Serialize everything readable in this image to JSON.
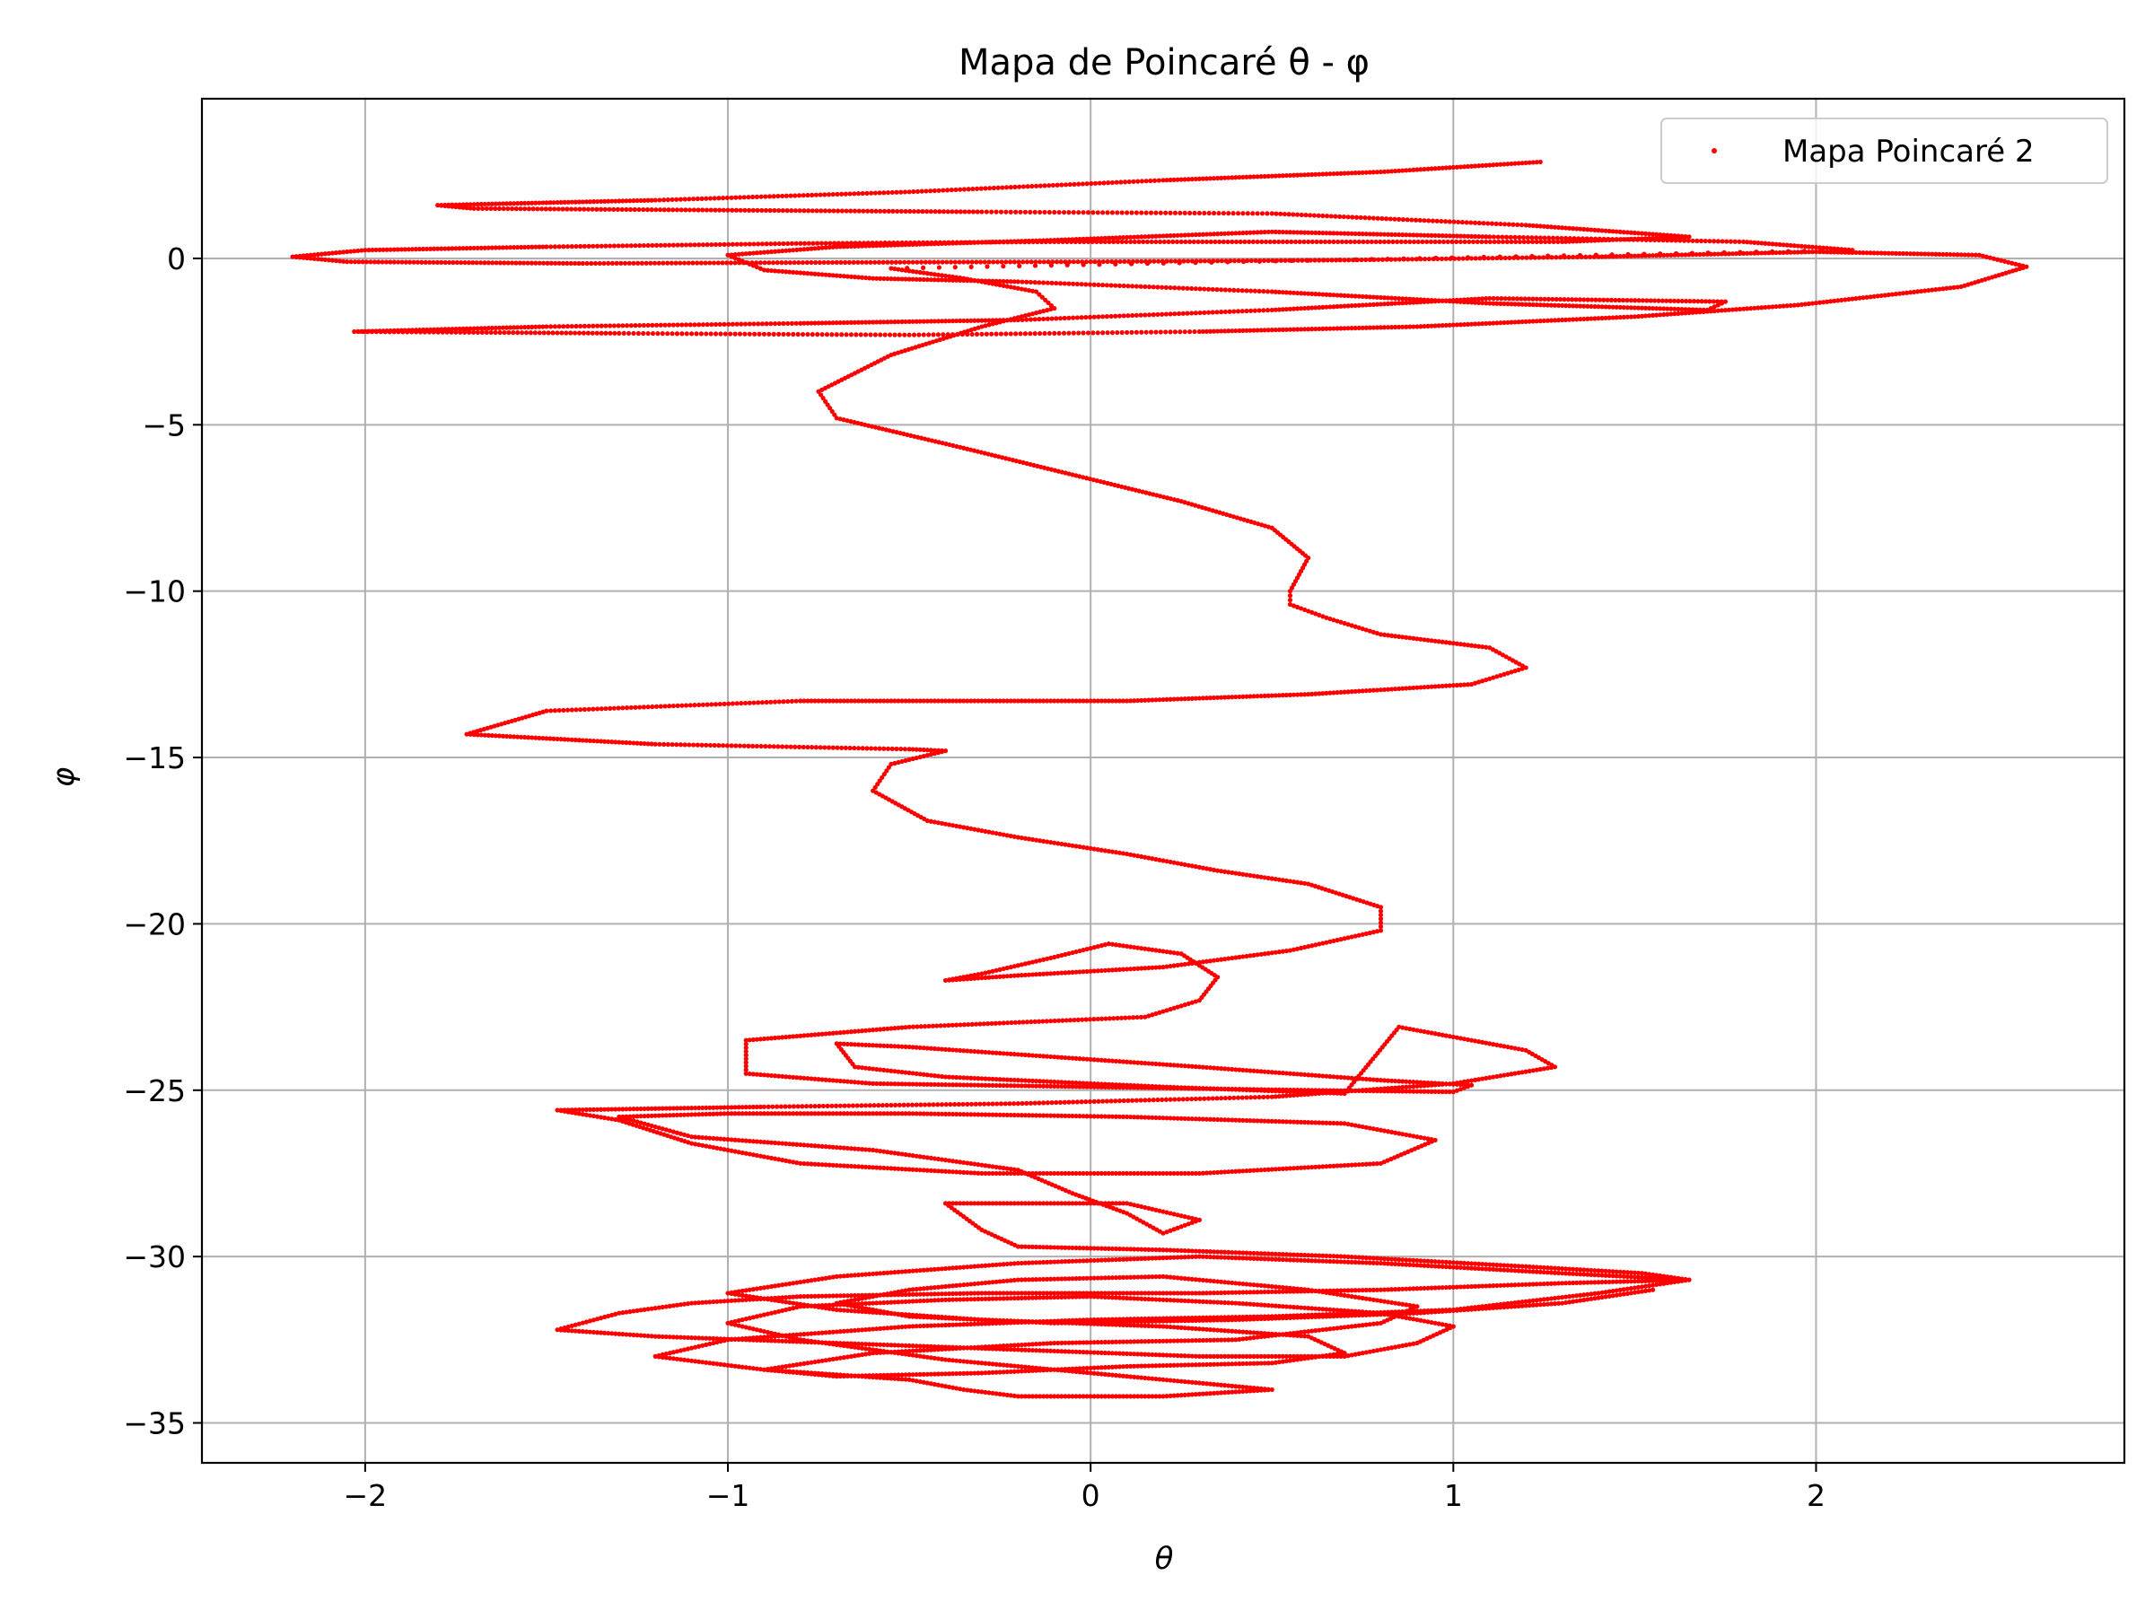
{
  "chart_data": {
    "type": "scatter",
    "title": "Mapa de Poincaré θ - φ",
    "xlabel": "θ",
    "ylabel": "φ",
    "xlim": [
      -2.45,
      2.85
    ],
    "ylim": [
      -36.2,
      4.8
    ],
    "xticks": [
      -2,
      -1,
      0,
      1,
      2
    ],
    "yticks": [
      0,
      -5,
      -10,
      -15,
      -20,
      -25,
      -30,
      -35
    ],
    "grid": true,
    "legend": "top-right",
    "series": [
      {
        "name": "Mapa Poincaré 2",
        "color": "#ff0000",
        "marker": "dot",
        "points": [
          [
            1.24,
            2.9
          ],
          [
            0.8,
            2.6
          ],
          [
            0.2,
            2.35
          ],
          [
            -0.5,
            2.0
          ],
          [
            -1.2,
            1.75
          ],
          [
            -1.8,
            1.6
          ],
          [
            -1.7,
            1.5
          ],
          [
            -1.0,
            1.45
          ],
          [
            -0.3,
            1.4
          ],
          [
            0.5,
            1.35
          ],
          [
            1.2,
            1.0
          ],
          [
            1.65,
            0.65
          ],
          [
            1.3,
            0.5
          ],
          [
            0.6,
            0.5
          ],
          [
            -0.1,
            0.5
          ],
          [
            -0.8,
            0.45
          ],
          [
            -1.5,
            0.35
          ],
          [
            -2.0,
            0.25
          ],
          [
            -2.2,
            0.05
          ],
          [
            -2.05,
            -0.1
          ],
          [
            -1.4,
            -0.15
          ],
          [
            -0.7,
            -0.12
          ],
          [
            0.0,
            -0.1
          ],
          [
            0.7,
            -0.05
          ],
          [
            1.4,
            0.05
          ],
          [
            2.0,
            0.2
          ],
          [
            2.45,
            0.1
          ],
          [
            2.58,
            -0.25
          ],
          [
            2.4,
            -0.85
          ],
          [
            1.95,
            -1.4
          ],
          [
            1.5,
            -1.75
          ],
          [
            0.9,
            -2.05
          ],
          [
            0.3,
            -2.2
          ],
          [
            -0.5,
            -2.3
          ],
          [
            -1.3,
            -2.25
          ],
          [
            -2.03,
            -2.2
          ],
          [
            -1.5,
            -2.05
          ],
          [
            -0.8,
            -1.95
          ],
          [
            -0.2,
            -1.85
          ],
          [
            0.5,
            -1.55
          ],
          [
            1.1,
            -1.2
          ],
          [
            1.75,
            -1.3
          ],
          [
            1.7,
            -1.55
          ],
          [
            1.1,
            -1.35
          ],
          [
            0.5,
            -1.0
          ],
          [
            -0.2,
            -0.7
          ],
          [
            -0.6,
            -0.6
          ],
          [
            -0.9,
            -0.35
          ],
          [
            -1.0,
            0.1
          ],
          [
            -0.7,
            0.35
          ],
          [
            -0.1,
            0.55
          ],
          [
            0.5,
            0.8
          ],
          [
            1.1,
            0.65
          ],
          [
            1.8,
            0.5
          ],
          [
            2.1,
            0.25
          ],
          [
            -0.55,
            -0.3
          ],
          [
            -0.35,
            -0.6
          ],
          [
            -0.15,
            -1.0
          ],
          [
            -0.1,
            -1.5
          ],
          [
            -0.3,
            -2.05
          ],
          [
            -0.55,
            -2.9
          ],
          [
            -0.75,
            -4.0
          ],
          [
            -0.7,
            -4.8
          ],
          [
            -0.35,
            -5.7
          ],
          [
            -0.05,
            -6.5
          ],
          [
            0.25,
            -7.3
          ],
          [
            0.5,
            -8.1
          ],
          [
            0.6,
            -9.0
          ],
          [
            0.55,
            -10.0
          ],
          [
            0.55,
            -10.4
          ],
          [
            0.65,
            -10.8
          ],
          [
            0.8,
            -11.3
          ],
          [
            1.1,
            -11.7
          ],
          [
            1.2,
            -12.3
          ],
          [
            1.05,
            -12.8
          ],
          [
            0.6,
            -13.1
          ],
          [
            0.1,
            -13.3
          ],
          [
            -0.3,
            -13.3
          ],
          [
            -0.8,
            -13.3
          ],
          [
            -1.5,
            -13.6
          ],
          [
            -1.72,
            -14.3
          ],
          [
            -1.2,
            -14.6
          ],
          [
            -0.5,
            -14.75
          ],
          [
            -0.4,
            -14.8
          ],
          [
            -0.55,
            -15.2
          ],
          [
            -0.6,
            -16.0
          ],
          [
            -0.45,
            -16.9
          ],
          [
            -0.2,
            -17.4
          ],
          [
            0.1,
            -17.9
          ],
          [
            0.35,
            -18.4
          ],
          [
            0.6,
            -18.8
          ],
          [
            0.8,
            -19.5
          ],
          [
            0.8,
            -20.2
          ],
          [
            0.55,
            -20.8
          ],
          [
            0.2,
            -21.3
          ],
          [
            -0.2,
            -21.55
          ],
          [
            -0.4,
            -21.7
          ],
          [
            -0.3,
            -21.5
          ],
          [
            -0.1,
            -21.0
          ],
          [
            0.05,
            -20.6
          ],
          [
            0.25,
            -20.9
          ],
          [
            0.35,
            -21.6
          ],
          [
            0.3,
            -22.3
          ],
          [
            0.15,
            -22.8
          ],
          [
            -0.5,
            -23.1
          ],
          [
            -0.95,
            -23.5
          ],
          [
            -0.95,
            -24.5
          ],
          [
            -0.6,
            -24.8
          ],
          [
            0.0,
            -24.9
          ],
          [
            0.6,
            -25.0
          ],
          [
            1.0,
            -25.05
          ],
          [
            1.05,
            -24.85
          ],
          [
            0.8,
            -24.7
          ],
          [
            0.3,
            -24.3
          ],
          [
            -0.1,
            -24.0
          ],
          [
            -0.5,
            -23.7
          ],
          [
            -0.7,
            -23.6
          ],
          [
            -0.65,
            -24.3
          ],
          [
            -0.4,
            -24.6
          ],
          [
            0.2,
            -24.9
          ],
          [
            0.7,
            -25.1
          ],
          [
            0.85,
            -23.1
          ],
          [
            1.2,
            -23.8
          ],
          [
            1.28,
            -24.3
          ],
          [
            1.0,
            -24.8
          ],
          [
            0.5,
            -25.2
          ],
          [
            -0.2,
            -25.4
          ],
          [
            -0.9,
            -25.5
          ],
          [
            -1.47,
            -25.6
          ],
          [
            -1.3,
            -25.9
          ],
          [
            -1.1,
            -26.6
          ],
          [
            -0.8,
            -27.2
          ],
          [
            -0.3,
            -27.5
          ],
          [
            0.3,
            -27.5
          ],
          [
            0.8,
            -27.2
          ],
          [
            0.95,
            -26.5
          ],
          [
            0.7,
            -26.0
          ],
          [
            0.1,
            -25.8
          ],
          [
            -0.5,
            -25.7
          ],
          [
            -1.0,
            -25.7
          ],
          [
            -1.3,
            -25.8
          ],
          [
            -1.1,
            -26.4
          ],
          [
            -0.6,
            -26.8
          ],
          [
            -0.2,
            -27.4
          ],
          [
            -0.05,
            -28.1
          ],
          [
            0.1,
            -28.7
          ],
          [
            0.2,
            -29.3
          ],
          [
            0.3,
            -28.9
          ],
          [
            0.1,
            -28.4
          ],
          [
            -0.4,
            -28.4
          ],
          [
            -0.3,
            -29.2
          ],
          [
            -0.2,
            -29.7
          ],
          [
            0.2,
            -29.8
          ],
          [
            0.7,
            -30.0
          ],
          [
            1.2,
            -30.3
          ],
          [
            1.52,
            -30.5
          ],
          [
            1.65,
            -30.7
          ],
          [
            1.3,
            -30.8
          ],
          [
            0.8,
            -31.0
          ],
          [
            0.3,
            -31.1
          ],
          [
            -0.3,
            -31.1
          ],
          [
            -0.8,
            -31.2
          ],
          [
            -1.1,
            -31.4
          ],
          [
            -1.3,
            -31.7
          ],
          [
            -1.47,
            -32.2
          ],
          [
            -1.2,
            -32.4
          ],
          [
            -0.7,
            -32.6
          ],
          [
            -0.2,
            -32.8
          ],
          [
            0.3,
            -33.0
          ],
          [
            0.7,
            -33.0
          ],
          [
            0.9,
            -32.6
          ],
          [
            1.0,
            -32.1
          ],
          [
            0.8,
            -31.7
          ],
          [
            0.4,
            -31.4
          ],
          [
            0.0,
            -31.2
          ],
          [
            -0.4,
            -31.3
          ],
          [
            -0.8,
            -31.5
          ],
          [
            -1.0,
            -32.0
          ],
          [
            -0.8,
            -32.5
          ],
          [
            -0.4,
            -33.1
          ],
          [
            0.0,
            -33.5
          ],
          [
            0.3,
            -33.8
          ],
          [
            0.5,
            -34.0
          ],
          [
            0.2,
            -34.2
          ],
          [
            -0.2,
            -34.2
          ],
          [
            -0.35,
            -34.0
          ],
          [
            -0.5,
            -33.7
          ],
          [
            -0.9,
            -33.4
          ],
          [
            -1.2,
            -33.0
          ],
          [
            -1.0,
            -32.5
          ],
          [
            -0.5,
            -32.1
          ],
          [
            0.0,
            -31.9
          ],
          [
            0.5,
            -31.8
          ],
          [
            1.0,
            -31.6
          ],
          [
            1.4,
            -31.1
          ],
          [
            1.65,
            -30.7
          ],
          [
            1.3,
            -30.5
          ],
          [
            0.8,
            -30.2
          ],
          [
            0.3,
            -30.0
          ],
          [
            -0.2,
            -30.2
          ],
          [
            -0.7,
            -30.6
          ],
          [
            -1.0,
            -31.1
          ],
          [
            -0.7,
            -31.6
          ],
          [
            -0.3,
            -31.9
          ],
          [
            0.2,
            -32.1
          ],
          [
            0.6,
            -32.4
          ],
          [
            0.7,
            -32.9
          ],
          [
            0.5,
            -33.2
          ],
          [
            0.1,
            -33.3
          ],
          [
            -0.3,
            -33.5
          ],
          [
            -0.7,
            -33.6
          ],
          [
            -0.9,
            -33.4
          ],
          [
            -0.6,
            -32.9
          ],
          [
            -0.1,
            -32.6
          ],
          [
            0.4,
            -32.5
          ],
          [
            0.8,
            -32.0
          ],
          [
            0.9,
            -31.5
          ],
          [
            0.6,
            -31.0
          ],
          [
            0.2,
            -30.6
          ],
          [
            -0.2,
            -30.7
          ],
          [
            -0.5,
            -31.0
          ],
          [
            -0.7,
            -31.4
          ],
          [
            -0.5,
            -31.8
          ],
          [
            -0.1,
            -32.0
          ],
          [
            0.4,
            -31.9
          ],
          [
            0.9,
            -31.7
          ],
          [
            1.3,
            -31.4
          ],
          [
            1.55,
            -31.0
          ]
        ]
      }
    ]
  }
}
